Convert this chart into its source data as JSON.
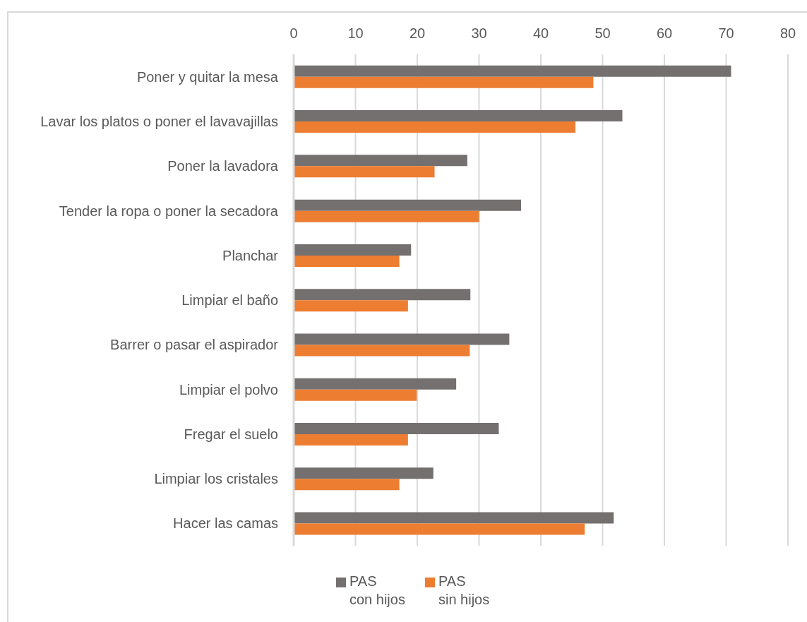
{
  "chart_data": {
    "type": "bar",
    "orientation": "horizontal",
    "categories": [
      "Poner y quitar la mesa",
      "Lavar los platos o poner el lavavajillas",
      "Poner la lavadora",
      "Tender la ropa o poner la secadora",
      "Planchar",
      "Limpiar el baño",
      "Barrer o pasar el aspirador",
      "Limpiar el polvo",
      "Fregar el suelo",
      "Limpiar los cristales",
      "Hacer las camas"
    ],
    "series": [
      {
        "name": "PAS\ncon hijos",
        "color": "#757070",
        "values": [
          70.8,
          53.2,
          28.1,
          36.8,
          19.0,
          28.6,
          34.9,
          26.3,
          33.2,
          22.6,
          51.8
        ]
      },
      {
        "name": "PAS\nsin hijos",
        "color": "#ed7d31",
        "values": [
          48.5,
          45.6,
          22.8,
          30.0,
          17.1,
          18.5,
          28.5,
          19.9,
          18.5,
          17.1,
          47.1
        ]
      }
    ],
    "xlim": [
      0,
      80
    ],
    "xticks": [
      0,
      10,
      20,
      30,
      40,
      50,
      60,
      70,
      80
    ],
    "grid": "x",
    "legend": "bottom"
  }
}
